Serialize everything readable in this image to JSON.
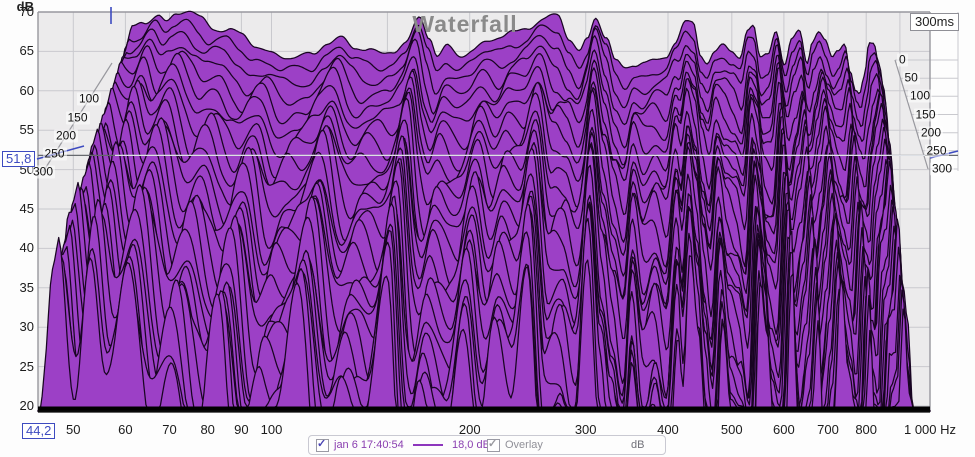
{
  "title": "Waterfall",
  "colors": {
    "waterfall_fill": "#9c40c6",
    "waterfall_stroke": "#190522",
    "plot_bg": "#ecebec",
    "grid": "#c9c9ce",
    "frame": "#98989e",
    "cursor_line_light": "#dde0e5",
    "cursor_line_dark": "#66696e",
    "cursor_blue": "#3d4bc0",
    "accent_purple": "#8a3fb0",
    "title_gray": "#8a8a8a",
    "floor_black": "#000000"
  },
  "axes": {
    "y_unit": "dB",
    "y_ticks": [
      "70",
      "65",
      "60",
      "55",
      "50",
      "45",
      "40",
      "35",
      "30",
      "25",
      "20"
    ],
    "x_ticks": [
      {
        "f": 50,
        "label": "50"
      },
      {
        "f": 60,
        "label": "60"
      },
      {
        "f": 70,
        "label": "70"
      },
      {
        "f": 80,
        "label": "80"
      },
      {
        "f": 90,
        "label": "90"
      },
      {
        "f": 100,
        "label": "100"
      },
      {
        "f": 200,
        "label": "200"
      },
      {
        "f": 300,
        "label": "300"
      },
      {
        "f": 400,
        "label": "400"
      },
      {
        "f": 500,
        "label": "500"
      },
      {
        "f": 600,
        "label": "600"
      },
      {
        "f": 700,
        "label": "700"
      },
      {
        "f": 800,
        "label": "800"
      },
      {
        "f": 1000,
        "label": "1 000 Hz"
      }
    ],
    "time_axis_label": "300ms",
    "time_ticks_left": [
      {
        "ms": 100,
        "label": "100"
      },
      {
        "ms": 150,
        "label": "150"
      },
      {
        "ms": 200,
        "label": "200"
      },
      {
        "ms": 250,
        "label": "250"
      },
      {
        "ms": 300,
        "label": "300"
      }
    ],
    "time_ticks_right": [
      {
        "ms": 0,
        "label": "0"
      },
      {
        "ms": 50,
        "label": "50"
      },
      {
        "ms": 100,
        "label": "100"
      },
      {
        "ms": 150,
        "label": "150"
      },
      {
        "ms": 200,
        "label": "200"
      },
      {
        "ms": 250,
        "label": "250"
      },
      {
        "ms": 300,
        "label": "300"
      }
    ]
  },
  "cursor": {
    "db_value": "51,8",
    "freq_value": "44,2"
  },
  "legend": {
    "measurement": "jan 6 17:40:54",
    "measurement_checked": true,
    "level": "18,0 dB",
    "overlay_label": "Overlay",
    "overlay_checked": true,
    "unit_label": "dB"
  },
  "chart_data": {
    "type": "waterfall",
    "title": "Waterfall",
    "x_unit": "Hz",
    "x_scale": "log",
    "x_range": [
      44.2,
      1000
    ],
    "y_unit": "dB",
    "y_range": [
      20,
      70
    ],
    "y_tick_step": 5,
    "time_range_ms": [
      0,
      300
    ],
    "num_slices": 27,
    "cursor": {
      "db": 51.8,
      "freq_hz": 44.2,
      "time_window_ms": 300
    },
    "series_name": "jan 6 17:40:54",
    "base_spectrum": {
      "freqs": [
        44.2,
        45,
        46.5,
        48,
        50,
        53,
        55,
        57,
        60,
        63,
        66,
        70,
        74,
        78,
        83,
        88,
        93,
        98,
        104,
        110,
        116,
        122,
        128,
        135,
        142,
        150,
        156,
        161,
        168,
        176,
        185,
        196,
        207,
        218,
        230,
        244,
        260,
        272,
        283,
        292,
        302,
        315,
        327,
        338,
        352,
        366,
        382,
        400,
        414,
        432,
        445,
        458,
        470,
        484,
        500,
        518,
        536,
        552,
        565,
        580,
        598,
        618,
        640,
        658,
        678,
        700,
        714,
        732,
        752,
        772,
        790,
        812,
        830,
        848,
        862,
        878,
        895,
        912,
        930,
        950,
        970,
        1000
      ],
      "db": [
        32,
        55,
        65,
        68,
        69,
        69.8,
        68.6,
        69.5,
        70,
        69.3,
        68.3,
        67.8,
        66.8,
        65.6,
        65,
        64.6,
        64.1,
        64.3,
        66.2,
        67,
        65.6,
        64.8,
        64.5,
        65.3,
        66.3,
        69.4,
        66.5,
        63.9,
        65.6,
        64.9,
        65.3,
        66.1,
        66.6,
        67.4,
        68.4,
        69,
        69.3,
        66.4,
        65,
        66.8,
        69.6,
        66.9,
        63.4,
        62.4,
        63.2,
        63.8,
        64.1,
        64.6,
        66,
        68.4,
        68.3,
        64.6,
        63.9,
        65.2,
        66,
        65.1,
        64.2,
        67.4,
        67.8,
        63.9,
        64.9,
        68,
        63.5,
        66.5,
        67.6,
        63.4,
        66,
        67.2,
        66.1,
        64.3,
        65.6,
        66.5,
        62.9,
        60,
        59.3,
        61.5,
        65.8,
        65.9,
        63.5,
        60,
        53,
        40
      ]
    },
    "mode_persistence": {
      "freqs": [
        44.2,
        47,
        50,
        53,
        56,
        60,
        65,
        70,
        76,
        83,
        89,
        95,
        102,
        110,
        119,
        128,
        138,
        150,
        158,
        168,
        182,
        196,
        207,
        218,
        230,
        244,
        258,
        272,
        287,
        302,
        315,
        327,
        340,
        352,
        366,
        382,
        398,
        414,
        422,
        432,
        445,
        458,
        470,
        484,
        500,
        518,
        536,
        552,
        565,
        580,
        598,
        618,
        628,
        640,
        658,
        678,
        690,
        700,
        714,
        732,
        752,
        772,
        790,
        812,
        830,
        848,
        862,
        878,
        895,
        912,
        930,
        950,
        970,
        1000
      ],
      "p": [
        0.9,
        0.85,
        0.45,
        0.8,
        0.55,
        0.75,
        0.4,
        0.6,
        0.38,
        0.72,
        0.33,
        0.5,
        0.5,
        0.74,
        0.38,
        0.55,
        0.45,
        0.8,
        0.35,
        0.5,
        0.4,
        0.72,
        0.45,
        0.6,
        0.5,
        0.8,
        0.3,
        0.45,
        0.35,
        0.82,
        0.5,
        0.4,
        0.25,
        0.65,
        0.4,
        0.5,
        0.35,
        0.72,
        0.55,
        0.8,
        0.6,
        0.45,
        0.3,
        0.68,
        0.45,
        0.42,
        0.3,
        0.78,
        0.6,
        0.4,
        0.3,
        0.8,
        0.5,
        0.35,
        0.45,
        0.72,
        0.25,
        0.4,
        0.5,
        0.75,
        0.5,
        0.45,
        0.3,
        0.7,
        0.28,
        0.35,
        0.3,
        0.6,
        0.55,
        0.78,
        0.6,
        0.55,
        0.35,
        0.4
      ]
    },
    "decay_model": {
      "per_slice_db": 1.75,
      "slice_exponent": 1.06,
      "broadband_per_slice_db": 0.34,
      "persistence_exponent": 1.2,
      "wiggle_db": [
        0.5,
        0.13,
        0.38,
        0.09
      ]
    }
  }
}
